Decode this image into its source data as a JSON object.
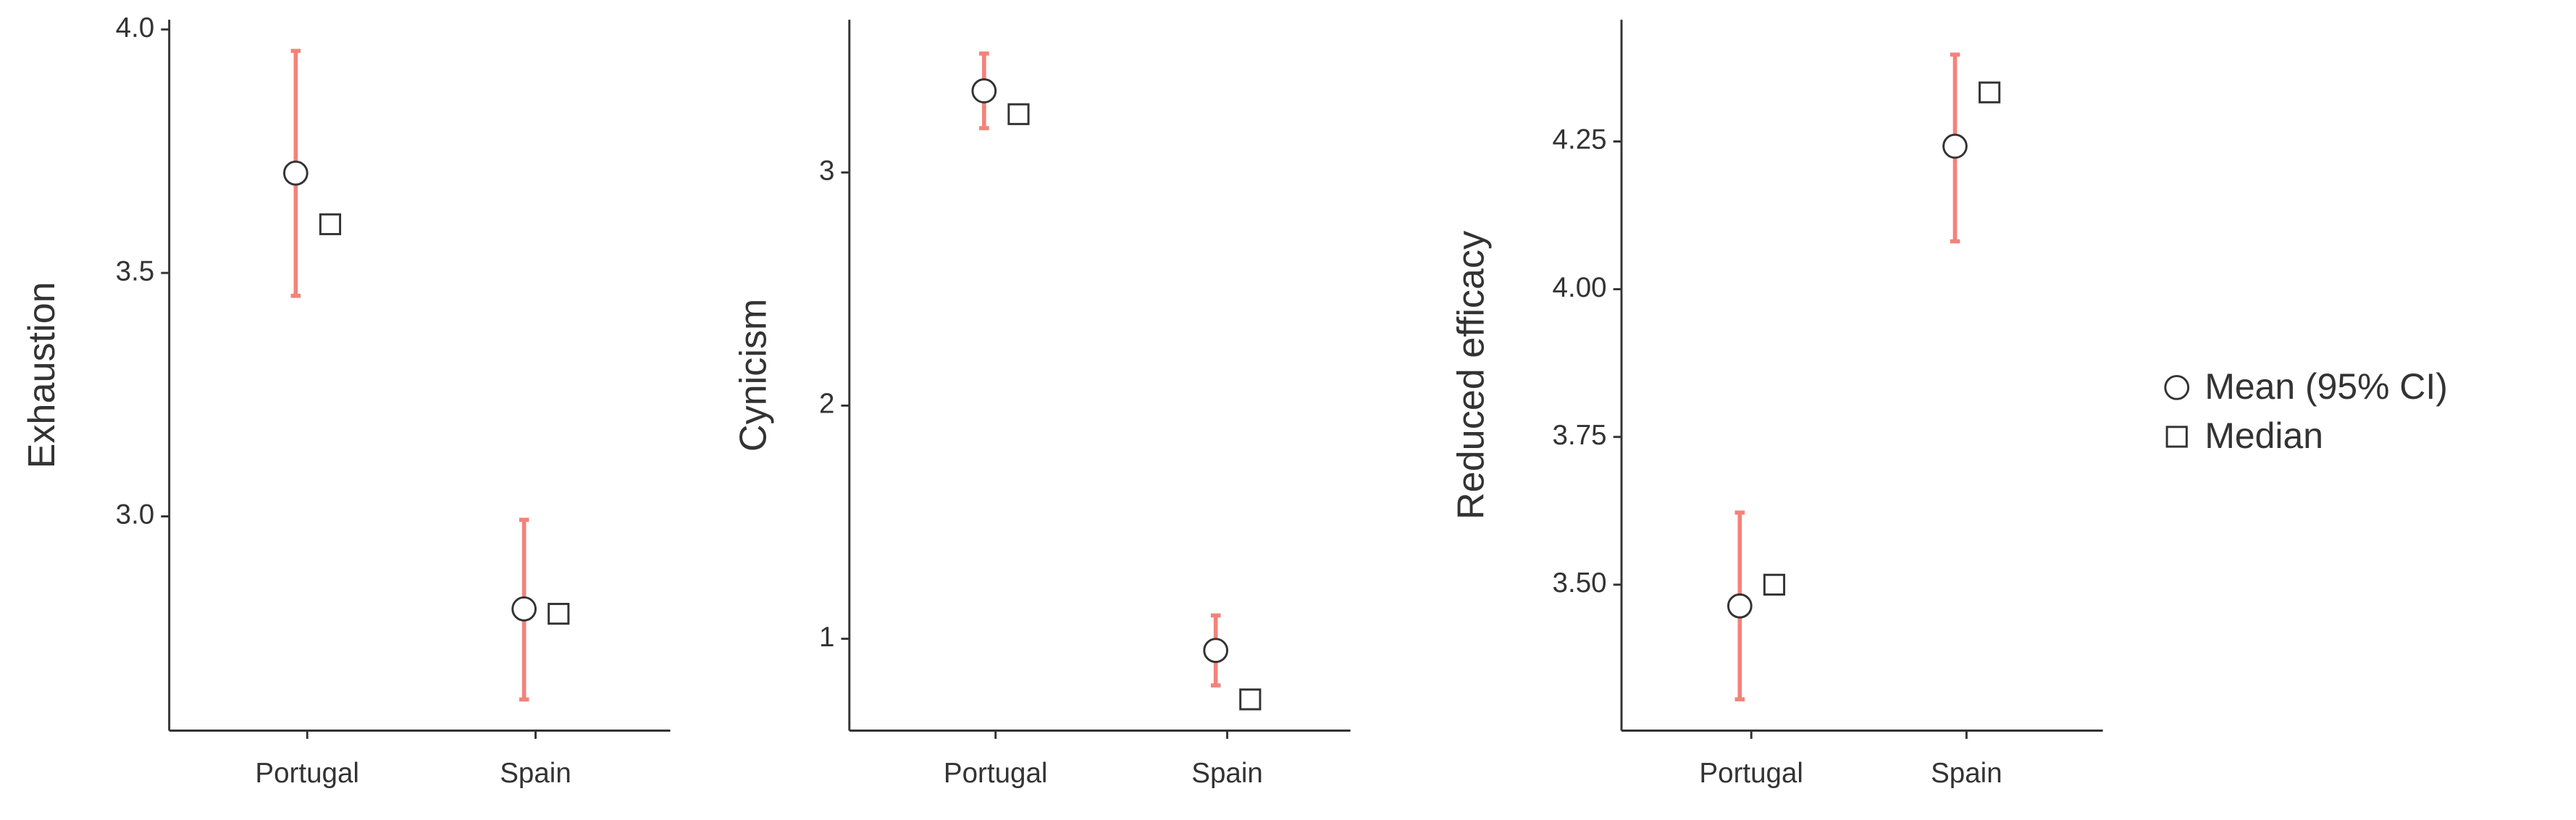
{
  "legend": [
    "Mean (95% CI)",
    "Median"
  ],
  "chart_data": [
    {
      "type": "point",
      "ylabel": "Exhaustion",
      "categories": [
        "Portugal",
        "Spain"
      ],
      "mean": [
        3.705,
        2.81
      ],
      "ci_low": [
        3.453,
        2.624
      ],
      "ci_high": [
        3.956,
        2.993
      ],
      "median": [
        3.6,
        2.8
      ],
      "ylim": [
        2.56,
        4.02
      ],
      "yticks": [
        {
          "value": 3,
          "label": "3.0"
        },
        3.5,
        {
          "value": 4,
          "label": "4.0"
        }
      ],
      "ci_color": "#f4827a"
    },
    {
      "type": "point",
      "ylabel": "Cynicism",
      "categories": [
        "Portugal",
        "Spain"
      ],
      "mean": [
        3.35,
        0.95
      ],
      "ci_low": [
        3.19,
        0.8
      ],
      "ci_high": [
        3.51,
        1.1
      ],
      "median": [
        3.25,
        0.74
      ],
      "ylim": [
        0.606,
        3.655
      ],
      "yticks": [
        1,
        2,
        3
      ],
      "ci_color": "#f4827a"
    },
    {
      "type": "point",
      "ylabel": "Reduced efficacy",
      "categories": [
        "Portugal",
        "Spain"
      ],
      "mean": [
        3.464,
        4.242
      ],
      "ci_low": [
        3.306,
        4.081
      ],
      "ci_high": [
        3.622,
        4.397
      ],
      "median": [
        3.5,
        4.333
      ],
      "ylim": [
        3.253,
        4.456
      ],
      "yticks": [
        {
          "value": 3.5,
          "label": "3.50"
        },
        3.75,
        {
          "value": 4,
          "label": "4.00"
        },
        4.25
      ],
      "ci_color": "#f4827a"
    }
  ]
}
